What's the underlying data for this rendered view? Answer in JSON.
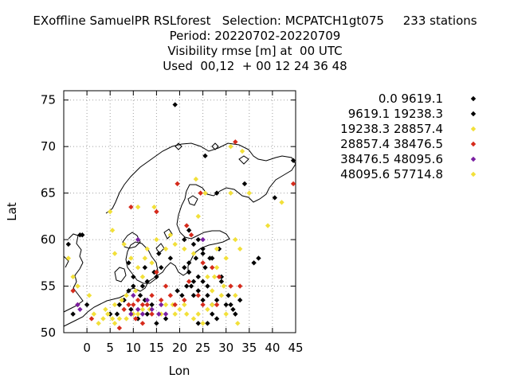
{
  "title": {
    "line1": "EXoffline SamuelPR RSLforest   Selection: MCPATCH1gt075     233 stations",
    "line2": "Period: 20220702-20220709",
    "line3": "Visibility rmse [m] at  00 UTC",
    "line4": "Used  00,12  + 00 12 24 36 48"
  },
  "chart_data": {
    "type": "scatter",
    "xlabel": "Lon",
    "ylabel": "Lat",
    "xlim": [
      -5,
      45
    ],
    "ylim": [
      50,
      76
    ],
    "xticks": [
      0,
      5,
      10,
      15,
      20,
      25,
      30,
      35,
      40,
      45
    ],
    "yticks": [
      50,
      55,
      60,
      65,
      70,
      75
    ],
    "grid": true,
    "legend_position": "right",
    "series": [
      {
        "name": "0.0 9619.1",
        "color": "#000000",
        "points": [
          [
            19,
            74.5
          ],
          [
            25.5,
            69
          ],
          [
            28,
            65
          ],
          [
            34,
            66
          ],
          [
            40.5,
            64.5
          ],
          [
            44.5,
            68.5
          ],
          [
            22,
            61
          ],
          [
            24,
            60
          ],
          [
            25,
            59
          ],
          [
            27,
            58
          ],
          [
            21,
            57
          ],
          [
            22,
            57.5
          ],
          [
            24,
            56
          ],
          [
            25,
            55.5
          ],
          [
            26,
            55
          ],
          [
            23,
            54
          ],
          [
            24,
            54.5
          ],
          [
            27,
            53
          ],
          [
            28,
            53.5
          ],
          [
            30,
            53
          ],
          [
            31,
            53
          ],
          [
            31.5,
            52.5
          ],
          [
            32,
            52
          ],
          [
            30.5,
            54
          ],
          [
            24,
            51
          ],
          [
            26,
            51
          ],
          [
            36,
            57.5
          ],
          [
            37,
            58
          ],
          [
            29,
            56
          ],
          [
            25.5,
            57
          ],
          [
            25,
            58.5
          ],
          [
            23.5,
            58
          ],
          [
            22.5,
            55
          ],
          [
            25,
            53.5
          ],
          [
            26,
            54
          ],
          [
            27,
            52
          ],
          [
            28,
            51.5
          ],
          [
            33,
            53.5
          ],
          [
            16,
            57
          ],
          [
            18,
            58
          ],
          [
            14.5,
            56.5
          ],
          [
            15,
            56
          ],
          [
            13,
            55.5
          ],
          [
            12,
            55
          ],
          [
            10,
            56
          ],
          [
            9,
            54.5
          ],
          [
            10,
            55
          ],
          [
            11.5,
            54
          ],
          [
            12.5,
            53.5
          ],
          [
            14,
            53
          ],
          [
            13,
            52
          ],
          [
            9.5,
            52.5
          ],
          [
            7,
            53
          ],
          [
            8,
            53.5
          ],
          [
            6.5,
            52
          ],
          [
            5,
            52
          ],
          [
            11,
            51.5
          ],
          [
            15,
            51
          ],
          [
            17,
            51.5
          ],
          [
            19.5,
            54.5
          ],
          [
            -4,
            59.5
          ],
          [
            -1.5,
            60.5
          ],
          [
            -1,
            60.5
          ],
          [
            0,
            53
          ],
          [
            -3,
            52
          ],
          [
            23,
            59.5
          ],
          [
            21,
            60
          ],
          [
            15.5,
            58.5
          ],
          [
            12.5,
            57
          ],
          [
            9,
            57.5
          ],
          [
            26.5,
            58
          ],
          [
            28.5,
            59
          ],
          [
            29,
            55.5
          ],
          [
            22,
            56.5
          ],
          [
            21.5,
            55
          ],
          [
            23,
            55.5
          ],
          [
            20.5,
            54
          ]
        ]
      },
      {
        "name": "9619.1 19238.3",
        "color": "#000000",
        "points": []
      },
      {
        "name": "19238.3 28857.4",
        "color": "#f2e03a",
        "points": [
          [
            35,
            65
          ],
          [
            42,
            64
          ],
          [
            39,
            61.5
          ],
          [
            32,
            60
          ],
          [
            33,
            59
          ],
          [
            30,
            58
          ],
          [
            28,
            57
          ],
          [
            26,
            56
          ],
          [
            27,
            54.5
          ],
          [
            29,
            54
          ],
          [
            30,
            52
          ],
          [
            32.5,
            51
          ],
          [
            24,
            52
          ],
          [
            23,
            51.5
          ],
          [
            21.5,
            52
          ],
          [
            20,
            52.5
          ],
          [
            19,
            52
          ],
          [
            21,
            53
          ],
          [
            18.5,
            53
          ],
          [
            17,
            53
          ],
          [
            16,
            52
          ],
          [
            13.5,
            52.5
          ],
          [
            12,
            52.5
          ],
          [
            11,
            52
          ],
          [
            10,
            52
          ],
          [
            8.5,
            51.5
          ],
          [
            7,
            51.5
          ],
          [
            6,
            51
          ],
          [
            5.5,
            51.5
          ],
          [
            4.5,
            52
          ],
          [
            3.5,
            51.5
          ],
          [
            2.5,
            51
          ],
          [
            4,
            52.5
          ],
          [
            6,
            53
          ],
          [
            7.5,
            53.5
          ],
          [
            8.5,
            54
          ],
          [
            10.5,
            54.5
          ],
          [
            12,
            56
          ],
          [
            11,
            57
          ],
          [
            9.5,
            58
          ],
          [
            8,
            59.5
          ],
          [
            6,
            58.5
          ],
          [
            5.5,
            61
          ],
          [
            5,
            63
          ],
          [
            11,
            63.5
          ],
          [
            14.5,
            63.5
          ],
          [
            18,
            60.5
          ],
          [
            24,
            62.5
          ],
          [
            25.5,
            65
          ],
          [
            23.5,
            66.5
          ],
          [
            31,
            65
          ],
          [
            33.5,
            69.5
          ],
          [
            31,
            70
          ],
          [
            -4,
            58
          ],
          [
            -3,
            56
          ],
          [
            -2,
            55
          ],
          [
            0.5,
            54
          ],
          [
            1.5,
            52
          ],
          [
            27.5,
            56
          ],
          [
            29.5,
            55
          ],
          [
            32,
            54
          ],
          [
            27,
            53
          ],
          [
            26,
            52.5
          ],
          [
            25,
            51
          ],
          [
            28,
            59
          ],
          [
            23,
            58.5
          ],
          [
            21,
            59
          ],
          [
            19,
            59.5
          ],
          [
            17,
            59
          ],
          [
            15,
            60
          ],
          [
            13,
            59
          ],
          [
            12.5,
            58
          ],
          [
            14,
            57.5
          ]
        ]
      },
      {
        "name": "28857.4 38476.5",
        "color": "#d62b1c",
        "points": [
          [
            32,
            70.5
          ],
          [
            19.5,
            66
          ],
          [
            24.5,
            65
          ],
          [
            21.5,
            61.5
          ],
          [
            22.5,
            60.5
          ],
          [
            25,
            57.5
          ],
          [
            27,
            57
          ],
          [
            28.5,
            56
          ],
          [
            31,
            55
          ],
          [
            33,
            55
          ],
          [
            24,
            54
          ],
          [
            21,
            53.5
          ],
          [
            19,
            53
          ],
          [
            17,
            55
          ],
          [
            14,
            54
          ],
          [
            13,
            53
          ],
          [
            12,
            53
          ],
          [
            11,
            53.5
          ],
          [
            10,
            53
          ],
          [
            9,
            53
          ],
          [
            8,
            52.5
          ],
          [
            10.5,
            51.5
          ],
          [
            12,
            51
          ],
          [
            14,
            52
          ],
          [
            16,
            53.5
          ],
          [
            18,
            54
          ],
          [
            -3,
            54.5
          ],
          [
            -2,
            53
          ],
          [
            1,
            51.5
          ],
          [
            7,
            50.5
          ],
          [
            15,
            63
          ],
          [
            9.5,
            63.5
          ],
          [
            28,
            53
          ],
          [
            44.5,
            66
          ],
          [
            25,
            53
          ],
          [
            22,
            55.5
          ],
          [
            15,
            56.5
          ]
        ]
      },
      {
        "name": "38476.5 48095.6",
        "color": "#7a1fa2",
        "points": [
          [
            11,
            60
          ],
          [
            -2,
            53
          ],
          [
            -1.5,
            52.5
          ],
          [
            9.5,
            52
          ],
          [
            10,
            54
          ],
          [
            11,
            52.5
          ],
          [
            12,
            52
          ],
          [
            13,
            53.5
          ],
          [
            14,
            52.5
          ],
          [
            15.5,
            52
          ],
          [
            16,
            53
          ],
          [
            17,
            52
          ],
          [
            25,
            60
          ]
        ]
      },
      {
        "name": "48095.6 57714.8",
        "color": "#f2e03a",
        "points": []
      }
    ]
  }
}
